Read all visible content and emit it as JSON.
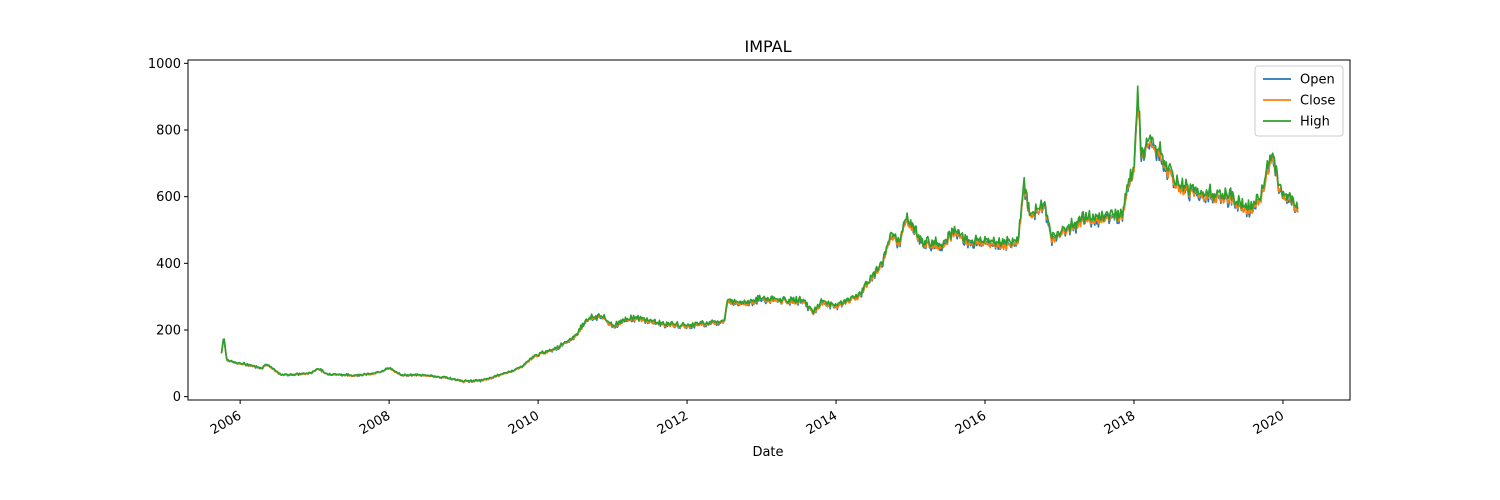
{
  "chart_data": {
    "type": "line",
    "title": "IMPAL",
    "xlabel": "Date",
    "ylabel": "",
    "ylim": [
      -10,
      1010
    ],
    "xlim": [
      2005.3,
      2020.9
    ],
    "x_ticks": [
      2006,
      2008,
      2010,
      2012,
      2014,
      2016,
      2018,
      2020
    ],
    "x_tick_labels": [
      "2006",
      "2008",
      "2010",
      "2012",
      "2014",
      "2016",
      "2018",
      "2020"
    ],
    "y_ticks": [
      0,
      200,
      400,
      600,
      800,
      1000
    ],
    "y_tick_labels": [
      "0",
      "200",
      "400",
      "600",
      "800",
      "1000"
    ],
    "legend_position": "top-right",
    "grid": false,
    "x_unit": "year",
    "close_anchor_points": [
      [
        2005.75,
        130
      ],
      [
        2005.78,
        180
      ],
      [
        2005.82,
        110
      ],
      [
        2005.95,
        100
      ],
      [
        2006.1,
        95
      ],
      [
        2006.3,
        85
      ],
      [
        2006.35,
        98
      ],
      [
        2006.45,
        80
      ],
      [
        2006.55,
        65
      ],
      [
        2006.75,
        66
      ],
      [
        2006.95,
        70
      ],
      [
        2007.05,
        85
      ],
      [
        2007.15,
        68
      ],
      [
        2007.5,
        63
      ],
      [
        2007.8,
        68
      ],
      [
        2008.0,
        85
      ],
      [
        2008.15,
        65
      ],
      [
        2008.5,
        63
      ],
      [
        2008.8,
        55
      ],
      [
        2009.0,
        45
      ],
      [
        2009.25,
        48
      ],
      [
        2009.5,
        65
      ],
      [
        2009.75,
        85
      ],
      [
        2009.95,
        120
      ],
      [
        2010.3,
        150
      ],
      [
        2010.5,
        180
      ],
      [
        2010.65,
        230
      ],
      [
        2010.85,
        240
      ],
      [
        2011.0,
        210
      ],
      [
        2011.25,
        235
      ],
      [
        2011.5,
        225
      ],
      [
        2011.7,
        215
      ],
      [
        2012.0,
        210
      ],
      [
        2012.3,
        220
      ],
      [
        2012.5,
        225
      ],
      [
        2012.55,
        285
      ],
      [
        2012.8,
        280
      ],
      [
        2013.0,
        290
      ],
      [
        2013.3,
        285
      ],
      [
        2013.55,
        285
      ],
      [
        2013.7,
        250
      ],
      [
        2013.8,
        280
      ],
      [
        2014.0,
        270
      ],
      [
        2014.3,
        300
      ],
      [
        2014.45,
        345
      ],
      [
        2014.6,
        390
      ],
      [
        2014.75,
        480
      ],
      [
        2014.85,
        460
      ],
      [
        2014.95,
        530
      ],
      [
        2015.15,
        460
      ],
      [
        2015.4,
        450
      ],
      [
        2015.6,
        490
      ],
      [
        2015.8,
        460
      ],
      [
        2016.0,
        460
      ],
      [
        2016.3,
        450
      ],
      [
        2016.45,
        470
      ],
      [
        2016.52,
        630
      ],
      [
        2016.6,
        540
      ],
      [
        2016.8,
        570
      ],
      [
        2016.9,
        470
      ],
      [
        2017.1,
        500
      ],
      [
        2017.4,
        530
      ],
      [
        2017.7,
        535
      ],
      [
        2017.85,
        540
      ],
      [
        2017.9,
        620
      ],
      [
        2018.0,
        680
      ],
      [
        2018.05,
        900
      ],
      [
        2018.1,
        720
      ],
      [
        2018.25,
        760
      ],
      [
        2018.4,
        690
      ],
      [
        2018.6,
        625
      ],
      [
        2018.8,
        610
      ],
      [
        2019.0,
        600
      ],
      [
        2019.3,
        590
      ],
      [
        2019.55,
        555
      ],
      [
        2019.7,
        590
      ],
      [
        2019.85,
        720
      ],
      [
        2019.95,
        620
      ],
      [
        2020.1,
        580
      ],
      [
        2020.2,
        560
      ]
    ],
    "series": [
      {
        "name": "Open",
        "color": "#1f77b4"
      },
      {
        "name": "Close",
        "color": "#ff7f0e"
      },
      {
        "name": "High",
        "color": "#2ca02c"
      }
    ]
  }
}
